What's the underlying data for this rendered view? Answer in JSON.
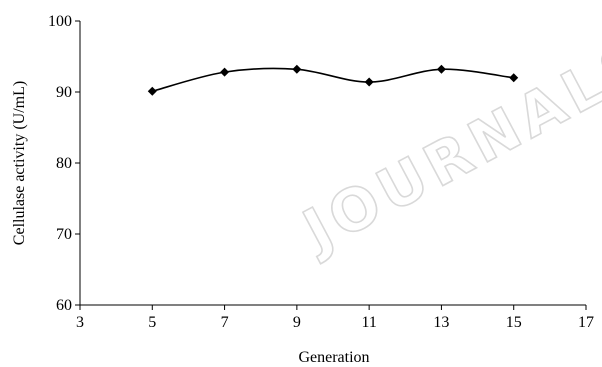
{
  "chart_data": {
    "type": "line",
    "title": "",
    "xlabel": "Generation",
    "ylabel": "Cellulase activity (U/mL)",
    "xlim": [
      3,
      17
    ],
    "ylim": [
      60,
      100
    ],
    "xticks": [
      3,
      5,
      7,
      9,
      11,
      13,
      15,
      17
    ],
    "yticks": [
      60,
      70,
      80,
      90,
      100
    ],
    "grid": false,
    "legend": "none",
    "series": [
      {
        "x": [
          5,
          7,
          9,
          11,
          13,
          15
        ],
        "y": [
          90.1,
          92.8,
          93.2,
          91.4,
          93.2,
          92.0
        ],
        "color": "#000000",
        "marker": "diamond",
        "smooth": true
      }
    ]
  },
  "watermark": {
    "text": "JOURNALS"
  }
}
